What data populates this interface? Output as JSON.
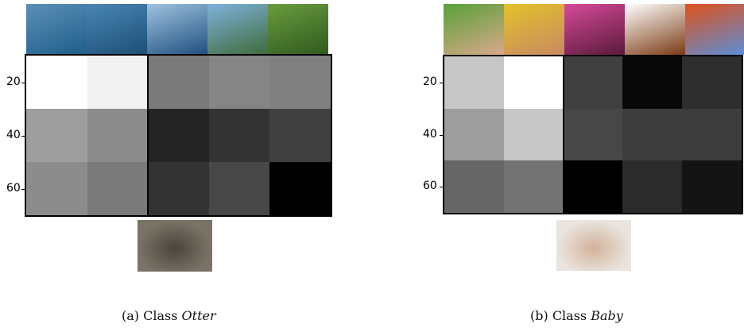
{
  "panels": [
    {
      "id": "a",
      "caption_prefix": "(a) Class ",
      "class_name": "Otter",
      "thumbnails": [
        {
          "name": "dolphins-icon",
          "colors": [
            "#5b8fb8",
            "#1f5f8a"
          ]
        },
        {
          "name": "whale-icon",
          "colors": [
            "#4a86b3",
            "#1b4f78"
          ]
        },
        {
          "name": "ocean-waves-icon",
          "colors": [
            "#9ec3de",
            "#1f4f80"
          ]
        },
        {
          "name": "castle-icon",
          "colors": [
            "#7fb2dc",
            "#3f6b3a"
          ]
        },
        {
          "name": "forest-icon",
          "colors": [
            "#6a9b3f",
            "#2e5a1e"
          ]
        }
      ],
      "yticks": [
        "20",
        "40",
        "60"
      ],
      "grid": [
        [
          1.0,
          0.95,
          0.48,
          0.52,
          0.5
        ],
        [
          0.62,
          0.55,
          0.14,
          0.2,
          0.25
        ],
        [
          0.55,
          0.48,
          0.2,
          0.28,
          0.0
        ]
      ],
      "query": {
        "name": "otter-icon",
        "colors": [
          "#7a7468",
          "#4a443a"
        ]
      }
    },
    {
      "id": "b",
      "caption_prefix": "(b) Class ",
      "class_name": "Baby",
      "thumbnails": [
        {
          "name": "boy-icon",
          "colors": [
            "#5aa03a",
            "#d9a88a"
          ]
        },
        {
          "name": "woman-icon",
          "colors": [
            "#e3c12a",
            "#c88a62"
          ]
        },
        {
          "name": "orchid-icon",
          "colors": [
            "#d64a9a",
            "#5a1a3a"
          ]
        },
        {
          "name": "cockroach-icon",
          "colors": [
            "#ffffff",
            "#7a3a12"
          ]
        },
        {
          "name": "autumn-tree-icon",
          "colors": [
            "#e0501a",
            "#5a8fd8"
          ]
        }
      ],
      "yticks": [
        "20",
        "40",
        "60"
      ],
      "grid": [
        [
          0.78,
          1.0,
          0.25,
          0.03,
          0.18
        ],
        [
          0.62,
          0.78,
          0.28,
          0.24,
          0.24
        ],
        [
          0.4,
          0.45,
          0.0,
          0.17,
          0.08
        ]
      ],
      "query": {
        "name": "baby-icon",
        "colors": [
          "#e9e4de",
          "#d2b29a"
        ]
      }
    }
  ]
}
